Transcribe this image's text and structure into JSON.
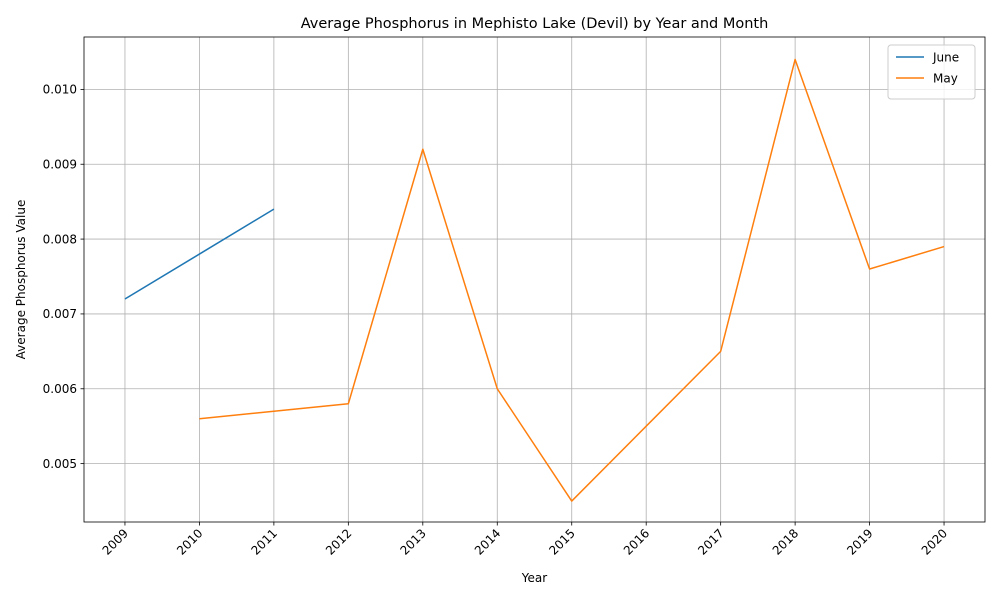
{
  "chart_data": {
    "type": "line",
    "title": "Average Phosphorus in Mephisto Lake (Devil) by Year and Month",
    "xlabel": "Year",
    "ylabel": "Average Phosphorus Value",
    "x_ticks": [
      "2009",
      "2010",
      "2011",
      "2012",
      "2013",
      "2014",
      "2015",
      "2016",
      "2017",
      "2018",
      "2019",
      "2020"
    ],
    "xlim": [
      2008.45,
      2020.55
    ],
    "ylim": [
      0.00422,
      0.0107
    ],
    "y_ticks": [
      "0.005",
      "0.006",
      "0.007",
      "0.008",
      "0.009",
      "0.010"
    ],
    "grid": true,
    "legend_position": "top-right",
    "series": [
      {
        "name": "June",
        "color": "#1f77b4",
        "points": [
          [
            2009,
            0.0072
          ],
          [
            2010,
            0.0078
          ],
          [
            2011,
            0.0084
          ]
        ]
      },
      {
        "name": "May",
        "color": "#ff7f0e",
        "points": [
          [
            2010,
            0.0056
          ],
          [
            2011,
            0.0057
          ],
          [
            2012,
            0.0058
          ],
          [
            2013,
            0.0092
          ],
          [
            2014,
            0.006
          ],
          [
            2015,
            0.0045
          ],
          [
            2016,
            0.0055
          ],
          [
            2017,
            0.0065
          ],
          [
            2018,
            0.0104
          ],
          [
            2019,
            0.0076
          ],
          [
            2020,
            0.0079
          ]
        ]
      }
    ]
  }
}
